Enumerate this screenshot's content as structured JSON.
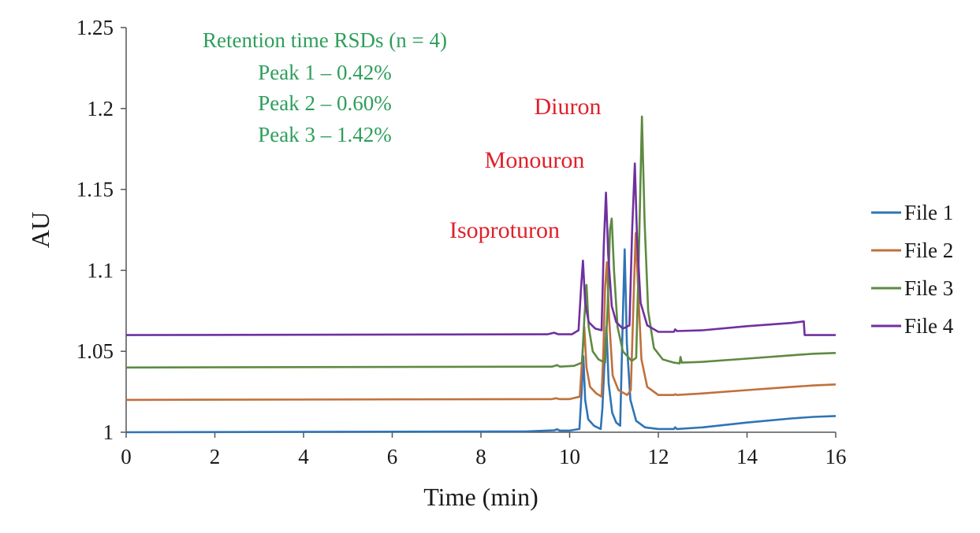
{
  "chart_data": {
    "type": "line",
    "xlabel": "Time (min)",
    "ylabel": "AU",
    "xlim": [
      0,
      16
    ],
    "ylim": [
      1.0,
      1.25
    ],
    "x_ticks": [
      "0",
      "2",
      "4",
      "6",
      "8",
      "10",
      "12",
      "14",
      "16"
    ],
    "y_ticks": [
      "1",
      "1.05",
      "1.1",
      "1.15",
      "1.2",
      "1.25"
    ],
    "grid": false,
    "legend_position": "right",
    "annotation": {
      "color": "#2e9e5b",
      "lines": [
        "Retention time RSDs (n = 4)",
        "Peak 1 – 0.42%",
        "Peak 2 – 0.60%",
        "Peak 3 – 1.42%"
      ]
    },
    "peak_labels": {
      "color": "#e0202a",
      "items": [
        {
          "text": "Isoproturon"
        },
        {
          "text": "Monouron"
        },
        {
          "text": "Diuron"
        }
      ]
    },
    "series": [
      {
        "name": "File 1",
        "color": "#2f74b5",
        "points": [
          [
            0,
            1.0
          ],
          [
            9.0,
            1.0005
          ],
          [
            9.65,
            1.0012
          ],
          [
            9.72,
            1.0018
          ],
          [
            9.78,
            1.001
          ],
          [
            10.0,
            1.001
          ],
          [
            10.22,
            1.002
          ],
          [
            10.27,
            1.025
          ],
          [
            10.31,
            1.047
          ],
          [
            10.35,
            1.02
          ],
          [
            10.42,
            1.008
          ],
          [
            10.55,
            1.004
          ],
          [
            10.7,
            1.002
          ],
          [
            10.74,
            1.015
          ],
          [
            10.79,
            1.045
          ],
          [
            10.83,
            1.065
          ],
          [
            10.88,
            1.03
          ],
          [
            10.96,
            1.012
          ],
          [
            11.05,
            1.006
          ],
          [
            11.14,
            1.004
          ],
          [
            11.19,
            1.06
          ],
          [
            11.24,
            1.113
          ],
          [
            11.29,
            1.055
          ],
          [
            11.37,
            1.02
          ],
          [
            11.5,
            1.007
          ],
          [
            11.7,
            1.003
          ],
          [
            12.0,
            1.002
          ],
          [
            12.35,
            1.002
          ],
          [
            12.38,
            1.003
          ],
          [
            12.42,
            1.002
          ],
          [
            13.0,
            1.003
          ],
          [
            14.0,
            1.006
          ],
          [
            15.0,
            1.0085
          ],
          [
            15.5,
            1.0095
          ],
          [
            16.0,
            1.01
          ]
        ]
      },
      {
        "name": "File 2",
        "color": "#c0703c",
        "points": [
          [
            0,
            1.02
          ],
          [
            9.6,
            1.0205
          ],
          [
            9.7,
            1.021
          ],
          [
            9.76,
            1.0205
          ],
          [
            10.0,
            1.0205
          ],
          [
            10.23,
            1.022
          ],
          [
            10.28,
            1.045
          ],
          [
            10.33,
            1.065
          ],
          [
            10.38,
            1.04
          ],
          [
            10.46,
            1.028
          ],
          [
            10.6,
            1.024
          ],
          [
            10.72,
            1.022
          ],
          [
            10.76,
            1.05
          ],
          [
            10.8,
            1.09
          ],
          [
            10.84,
            1.105
          ],
          [
            10.89,
            1.07
          ],
          [
            10.97,
            1.035
          ],
          [
            11.1,
            1.026
          ],
          [
            11.3,
            1.023
          ],
          [
            11.38,
            1.026
          ],
          [
            11.44,
            1.08
          ],
          [
            11.49,
            1.123
          ],
          [
            11.55,
            1.085
          ],
          [
            11.62,
            1.045
          ],
          [
            11.75,
            1.028
          ],
          [
            12.0,
            1.023
          ],
          [
            12.35,
            1.023
          ],
          [
            12.38,
            1.0235
          ],
          [
            12.42,
            1.023
          ],
          [
            13.0,
            1.024
          ],
          [
            14.0,
            1.026
          ],
          [
            15.0,
            1.028
          ],
          [
            15.5,
            1.0289
          ],
          [
            16.0,
            1.0295
          ]
        ]
      },
      {
        "name": "File 3",
        "color": "#5e8a42",
        "points": [
          [
            0,
            1.04
          ],
          [
            9.6,
            1.0405
          ],
          [
            9.72,
            1.0415
          ],
          [
            9.78,
            1.0405
          ],
          [
            10.1,
            1.041
          ],
          [
            10.28,
            1.043
          ],
          [
            10.33,
            1.07
          ],
          [
            10.38,
            1.091
          ],
          [
            10.43,
            1.065
          ],
          [
            10.52,
            1.05
          ],
          [
            10.65,
            1.045
          ],
          [
            10.8,
            1.043
          ],
          [
            10.86,
            1.08
          ],
          [
            10.91,
            1.125
          ],
          [
            10.95,
            1.132
          ],
          [
            11.0,
            1.1
          ],
          [
            11.08,
            1.065
          ],
          [
            11.2,
            1.05
          ],
          [
            11.4,
            1.044
          ],
          [
            11.5,
            1.046
          ],
          [
            11.56,
            1.11
          ],
          [
            11.63,
            1.195
          ],
          [
            11.69,
            1.13
          ],
          [
            11.77,
            1.075
          ],
          [
            11.9,
            1.052
          ],
          [
            12.1,
            1.045
          ],
          [
            12.35,
            1.043
          ],
          [
            12.48,
            1.0425
          ],
          [
            12.5,
            1.0465
          ],
          [
            12.53,
            1.043
          ],
          [
            13.0,
            1.0435
          ],
          [
            14.0,
            1.0455
          ],
          [
            15.0,
            1.0475
          ],
          [
            15.5,
            1.0485
          ],
          [
            16.0,
            1.049
          ]
        ]
      },
      {
        "name": "File 4",
        "color": "#7030a0",
        "points": [
          [
            0,
            1.06
          ],
          [
            9.5,
            1.0605
          ],
          [
            9.65,
            1.0615
          ],
          [
            9.75,
            1.0605
          ],
          [
            10.05,
            1.0605
          ],
          [
            10.2,
            1.063
          ],
          [
            10.26,
            1.09
          ],
          [
            10.3,
            1.106
          ],
          [
            10.35,
            1.08
          ],
          [
            10.43,
            1.068
          ],
          [
            10.58,
            1.064
          ],
          [
            10.72,
            1.063
          ],
          [
            10.77,
            1.115
          ],
          [
            10.82,
            1.148
          ],
          [
            10.87,
            1.11
          ],
          [
            10.95,
            1.078
          ],
          [
            11.05,
            1.068
          ],
          [
            11.2,
            1.064
          ],
          [
            11.35,
            1.066
          ],
          [
            11.41,
            1.125
          ],
          [
            11.47,
            1.166
          ],
          [
            11.52,
            1.12
          ],
          [
            11.6,
            1.08
          ],
          [
            11.75,
            1.066
          ],
          [
            12.0,
            1.062
          ],
          [
            12.35,
            1.062
          ],
          [
            12.38,
            1.0635
          ],
          [
            12.42,
            1.0625
          ],
          [
            13.0,
            1.063
          ],
          [
            14.0,
            1.0655
          ],
          [
            15.0,
            1.0675
          ],
          [
            15.28,
            1.0685
          ],
          [
            15.3,
            1.06
          ],
          [
            16.0,
            1.06
          ]
        ]
      }
    ]
  }
}
